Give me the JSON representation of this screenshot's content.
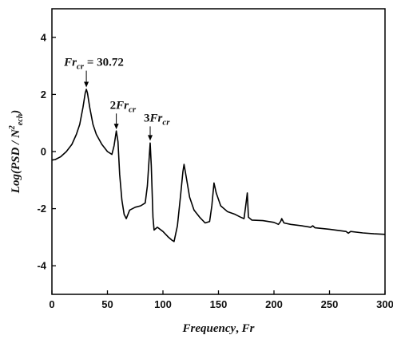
{
  "chart_data": {
    "type": "line",
    "title": "",
    "xlabel": {
      "main": "Frequency",
      "sep": ", ",
      "var": "Fr"
    },
    "ylabel": {
      "pre": "Log(PSD / N",
      "sup": "2",
      "sub": "ech",
      "post": ")"
    },
    "xlim": [
      0,
      300
    ],
    "ylim": [
      -5,
      5
    ],
    "xticks": [
      0,
      50,
      100,
      150,
      200,
      250,
      300
    ],
    "yticks": [
      -4,
      -2,
      0,
      2,
      4
    ],
    "xtick_labels": [
      "0",
      "50",
      "100",
      "150",
      "200",
      "250",
      "300"
    ],
    "ytick_labels": [
      "-4",
      "-2",
      "0",
      "2",
      "4"
    ],
    "grid": false,
    "series": [
      {
        "points": [
          [
            0,
            -0.3
          ],
          [
            3,
            -0.28
          ],
          [
            8,
            -0.18
          ],
          [
            13,
            0.0
          ],
          [
            18,
            0.25
          ],
          [
            22,
            0.6
          ],
          [
            25,
            0.95
          ],
          [
            28,
            1.55
          ],
          [
            30,
            2.05
          ],
          [
            31,
            2.18
          ],
          [
            32,
            2.05
          ],
          [
            34,
            1.55
          ],
          [
            37,
            0.95
          ],
          [
            40,
            0.6
          ],
          [
            45,
            0.25
          ],
          [
            50,
            0.0
          ],
          [
            54,
            -0.1
          ],
          [
            56,
            0.2
          ],
          [
            58,
            0.72
          ],
          [
            59.5,
            0.35
          ],
          [
            61,
            -0.8
          ],
          [
            63,
            -1.7
          ],
          [
            65,
            -2.2
          ],
          [
            67,
            -2.35
          ],
          [
            70,
            -2.05
          ],
          [
            75,
            -1.95
          ],
          [
            80,
            -1.9
          ],
          [
            84,
            -1.8
          ],
          [
            86,
            -1.2
          ],
          [
            87.5,
            -0.3
          ],
          [
            88.5,
            0.3
          ],
          [
            89.5,
            -0.5
          ],
          [
            91,
            -2.3
          ],
          [
            92,
            -2.75
          ],
          [
            95,
            -2.65
          ],
          [
            100,
            -2.8
          ],
          [
            105,
            -3.0
          ],
          [
            108,
            -3.1
          ],
          [
            110,
            -3.15
          ],
          [
            113,
            -2.6
          ],
          [
            116,
            -1.5
          ],
          [
            118,
            -0.7
          ],
          [
            119,
            -0.45
          ],
          [
            121,
            -0.9
          ],
          [
            124,
            -1.6
          ],
          [
            128,
            -2.05
          ],
          [
            133,
            -2.3
          ],
          [
            138,
            -2.5
          ],
          [
            142,
            -2.45
          ],
          [
            144,
            -1.9
          ],
          [
            146,
            -1.1
          ],
          [
            148,
            -1.45
          ],
          [
            152,
            -1.9
          ],
          [
            158,
            -2.1
          ],
          [
            165,
            -2.2
          ],
          [
            170,
            -2.3
          ],
          [
            173,
            -2.35
          ],
          [
            174.5,
            -1.9
          ],
          [
            176,
            -1.45
          ],
          [
            177,
            -2.3
          ],
          [
            180,
            -2.4
          ],
          [
            190,
            -2.42
          ],
          [
            200,
            -2.48
          ],
          [
            204,
            -2.55
          ],
          [
            206,
            -2.45
          ],
          [
            207,
            -2.35
          ],
          [
            209,
            -2.5
          ],
          [
            215,
            -2.55
          ],
          [
            225,
            -2.6
          ],
          [
            233,
            -2.65
          ],
          [
            235,
            -2.6
          ],
          [
            237,
            -2.67
          ],
          [
            250,
            -2.72
          ],
          [
            265,
            -2.8
          ],
          [
            267,
            -2.86
          ],
          [
            269,
            -2.8
          ],
          [
            280,
            -2.85
          ],
          [
            290,
            -2.88
          ],
          [
            300,
            -2.9
          ]
        ]
      }
    ],
    "annotations": [
      {
        "id": "fr-cr",
        "label": "= 30.72",
        "arrow_x": 31,
        "arrow_y": 2.25,
        "text_y": 3.0
      },
      {
        "id": "2fr-cr",
        "label": "2",
        "arrow_x": 58,
        "arrow_y": 0.78,
        "text_y": 1.5
      },
      {
        "id": "3fr-cr",
        "label": "3",
        "arrow_x": 88.5,
        "arrow_y": 0.38,
        "text_y": 1.05
      }
    ],
    "annotation_symbol": {
      "main": "Fr",
      "sub": "cr"
    }
  }
}
